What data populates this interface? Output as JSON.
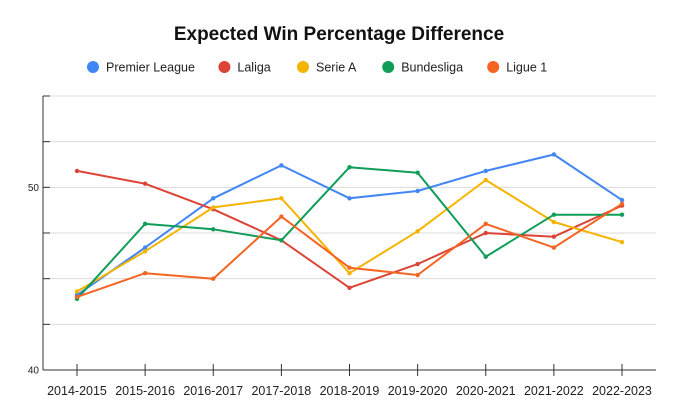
{
  "chart_data": {
    "type": "line",
    "title": "Expected Win Percentage Difference",
    "xlabel": "",
    "ylabel": "",
    "categories": [
      "2014-2015",
      "2015-2016",
      "2016-2017",
      "2017-2018",
      "2018-2019",
      "2019-2020",
      "2020-2021",
      "2021-2022",
      "2022-2023"
    ],
    "ylim": [
      40,
      55
    ],
    "yticks_labeled": [
      40,
      50
    ],
    "grid": true,
    "legend_position": "top",
    "series": [
      {
        "name": "Premier League",
        "color": "#4285F4",
        "values": [
          44.1,
          46.7,
          49.4,
          51.2,
          49.4,
          49.8,
          50.9,
          51.8,
          49.3
        ]
      },
      {
        "name": "Laliga",
        "color": "#DB4437",
        "values": [
          50.9,
          50.2,
          48.8,
          47.1,
          44.5,
          45.8,
          47.5,
          47.3,
          49.0
        ]
      },
      {
        "name": "Serie A",
        "color": "#F4B400",
        "values": [
          44.3,
          46.5,
          48.9,
          49.4,
          45.3,
          47.6,
          50.4,
          48.1,
          47.0
        ]
      },
      {
        "name": "Bundesliga",
        "color": "#0F9D58",
        "values": [
          43.9,
          48.0,
          47.7,
          47.1,
          51.1,
          50.8,
          46.2,
          48.5,
          48.5
        ]
      },
      {
        "name": "Ligue 1",
        "color": "#F46524",
        "values": [
          44.0,
          45.3,
          45.0,
          48.4,
          45.6,
          45.2,
          48.0,
          46.7,
          49.1
        ]
      }
    ]
  }
}
